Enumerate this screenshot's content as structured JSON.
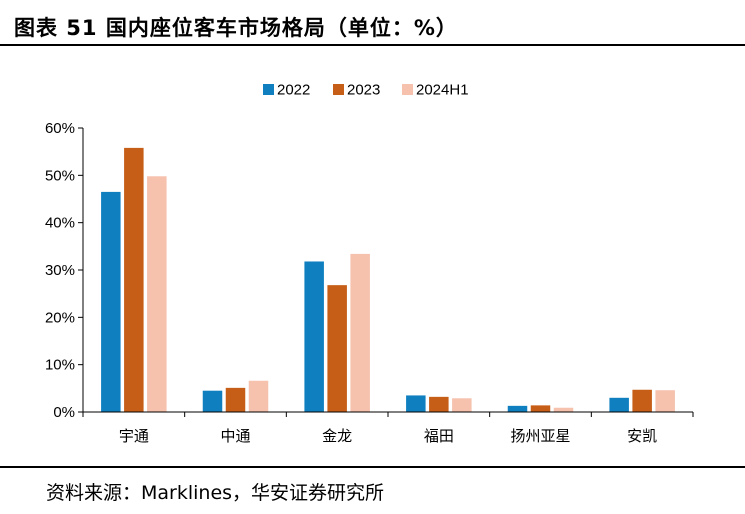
{
  "title": "图表 51  国内座位客车市场格局（单位：%）",
  "source": "资料来源：Marklines，华安证券研究所",
  "chart_data": {
    "type": "bar",
    "categories": [
      "宇通",
      "中通",
      "金龙",
      "福田",
      "扬州亚星",
      "安凯"
    ],
    "series": [
      {
        "name": "2022",
        "color": "#0f7fbf",
        "values": [
          46.5,
          4.5,
          31.8,
          3.5,
          1.3,
          3.0
        ]
      },
      {
        "name": "2023",
        "color": "#c65e17",
        "values": [
          55.8,
          5.1,
          26.8,
          3.2,
          1.4,
          4.7
        ]
      },
      {
        "name": "2024H1",
        "color": "#f6c1ad",
        "values": [
          49.8,
          6.6,
          33.4,
          2.9,
          0.9,
          4.6
        ]
      }
    ],
    "yticks": [
      "0%",
      "10%",
      "20%",
      "30%",
      "40%",
      "50%",
      "60%"
    ],
    "ylim": [
      0,
      60
    ],
    "grid": false,
    "legend": "top-center"
  }
}
